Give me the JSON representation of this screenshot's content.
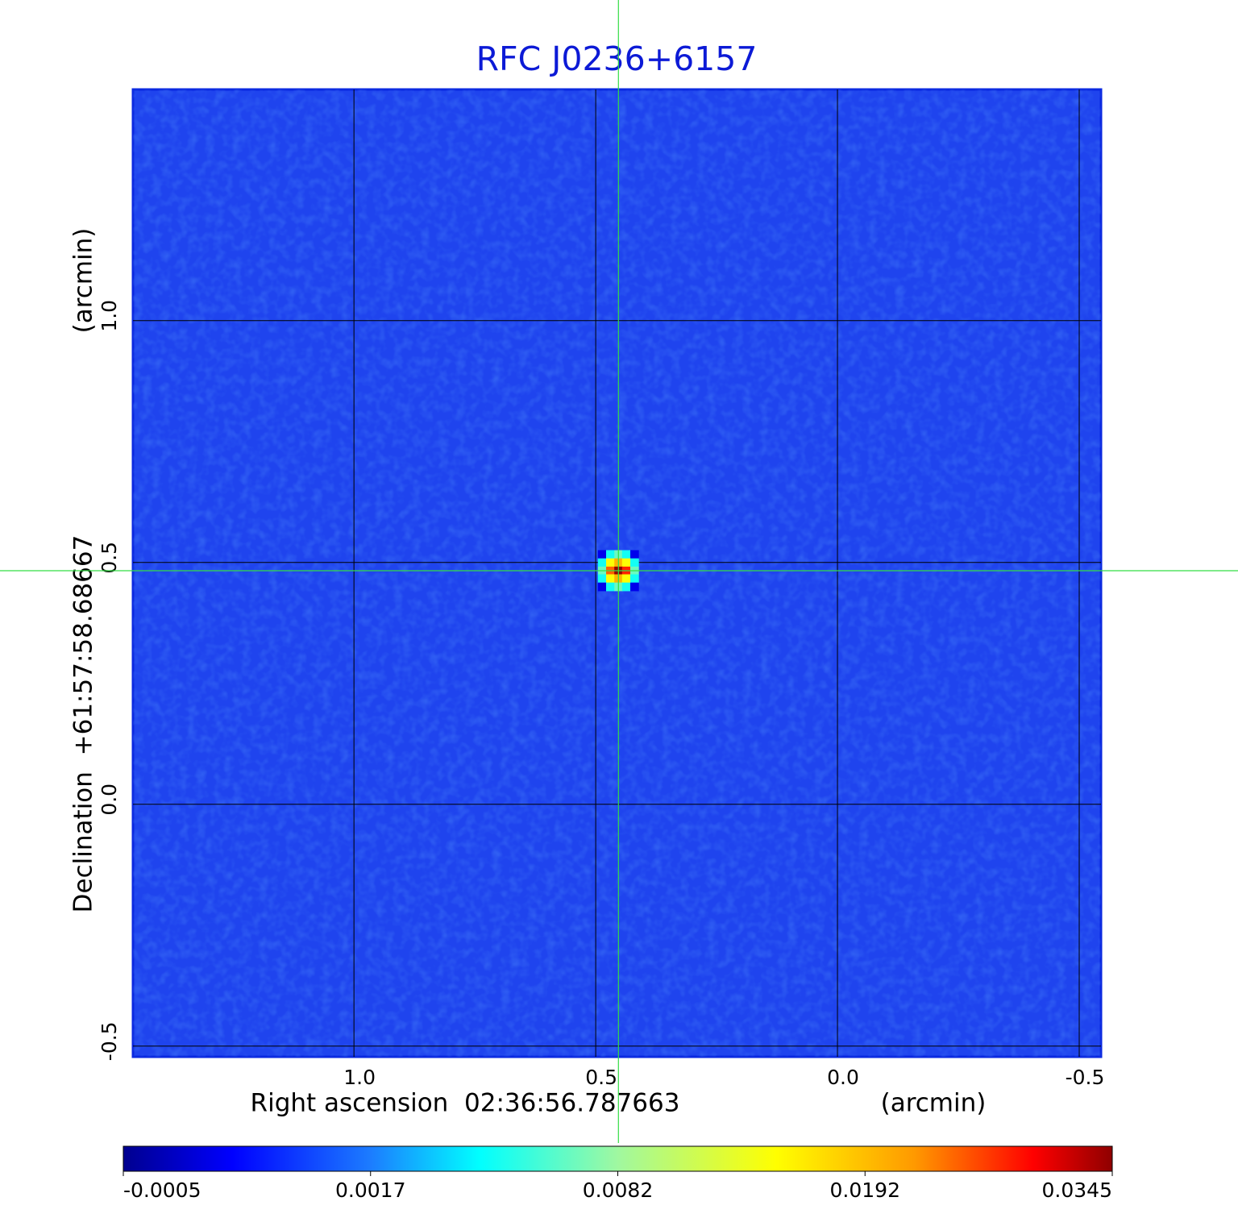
{
  "chart_data": {
    "type": "image",
    "title": "RFC J0236+6157",
    "x_label": "Right ascension  02:36:56.787663",
    "x_unit": "(arcmin)",
    "y_label": "Declination  +61:57:58.68667",
    "y_unit": "(arcmin)",
    "xlim": [
      1.457,
      -0.545
    ],
    "ylim": [
      -0.522,
      1.478
    ],
    "xticks": [
      {
        "value": 1.0,
        "label": "1.0"
      },
      0.5,
      {
        "value": 0.0,
        "label": "0.0"
      },
      -0.5
    ],
    "yticks": [
      -0.5,
      {
        "value": 0.0,
        "label": "0.0"
      },
      0.5,
      {
        "value": 1.0,
        "label": "1.0"
      }
    ],
    "grid": true,
    "colormap": "jet",
    "colorbar_ticks": [
      -0.0005,
      0.0017,
      0.0082,
      0.0192,
      0.0345
    ],
    "crosshair": {
      "x": 0.453,
      "y": 0.483,
      "color": "#33dd44"
    },
    "source": {
      "x": [
        0.487,
        0.47,
        0.453,
        0.437,
        0.42
      ],
      "y": [
        0.517,
        0.5,
        0.483,
        0.467,
        0.45
      ],
      "values": [
        [
          0.0003,
          0.005,
          0.007,
          0.005,
          0.0003
        ],
        [
          0.005,
          0.015,
          0.02,
          0.015,
          0.005
        ],
        [
          0.007,
          0.025,
          0.0345,
          0.028,
          0.007
        ],
        [
          0.005,
          0.015,
          0.02,
          0.015,
          0.005
        ],
        [
          0.0003,
          0.005,
          0.007,
          0.005,
          0.0003
        ]
      ]
    }
  }
}
